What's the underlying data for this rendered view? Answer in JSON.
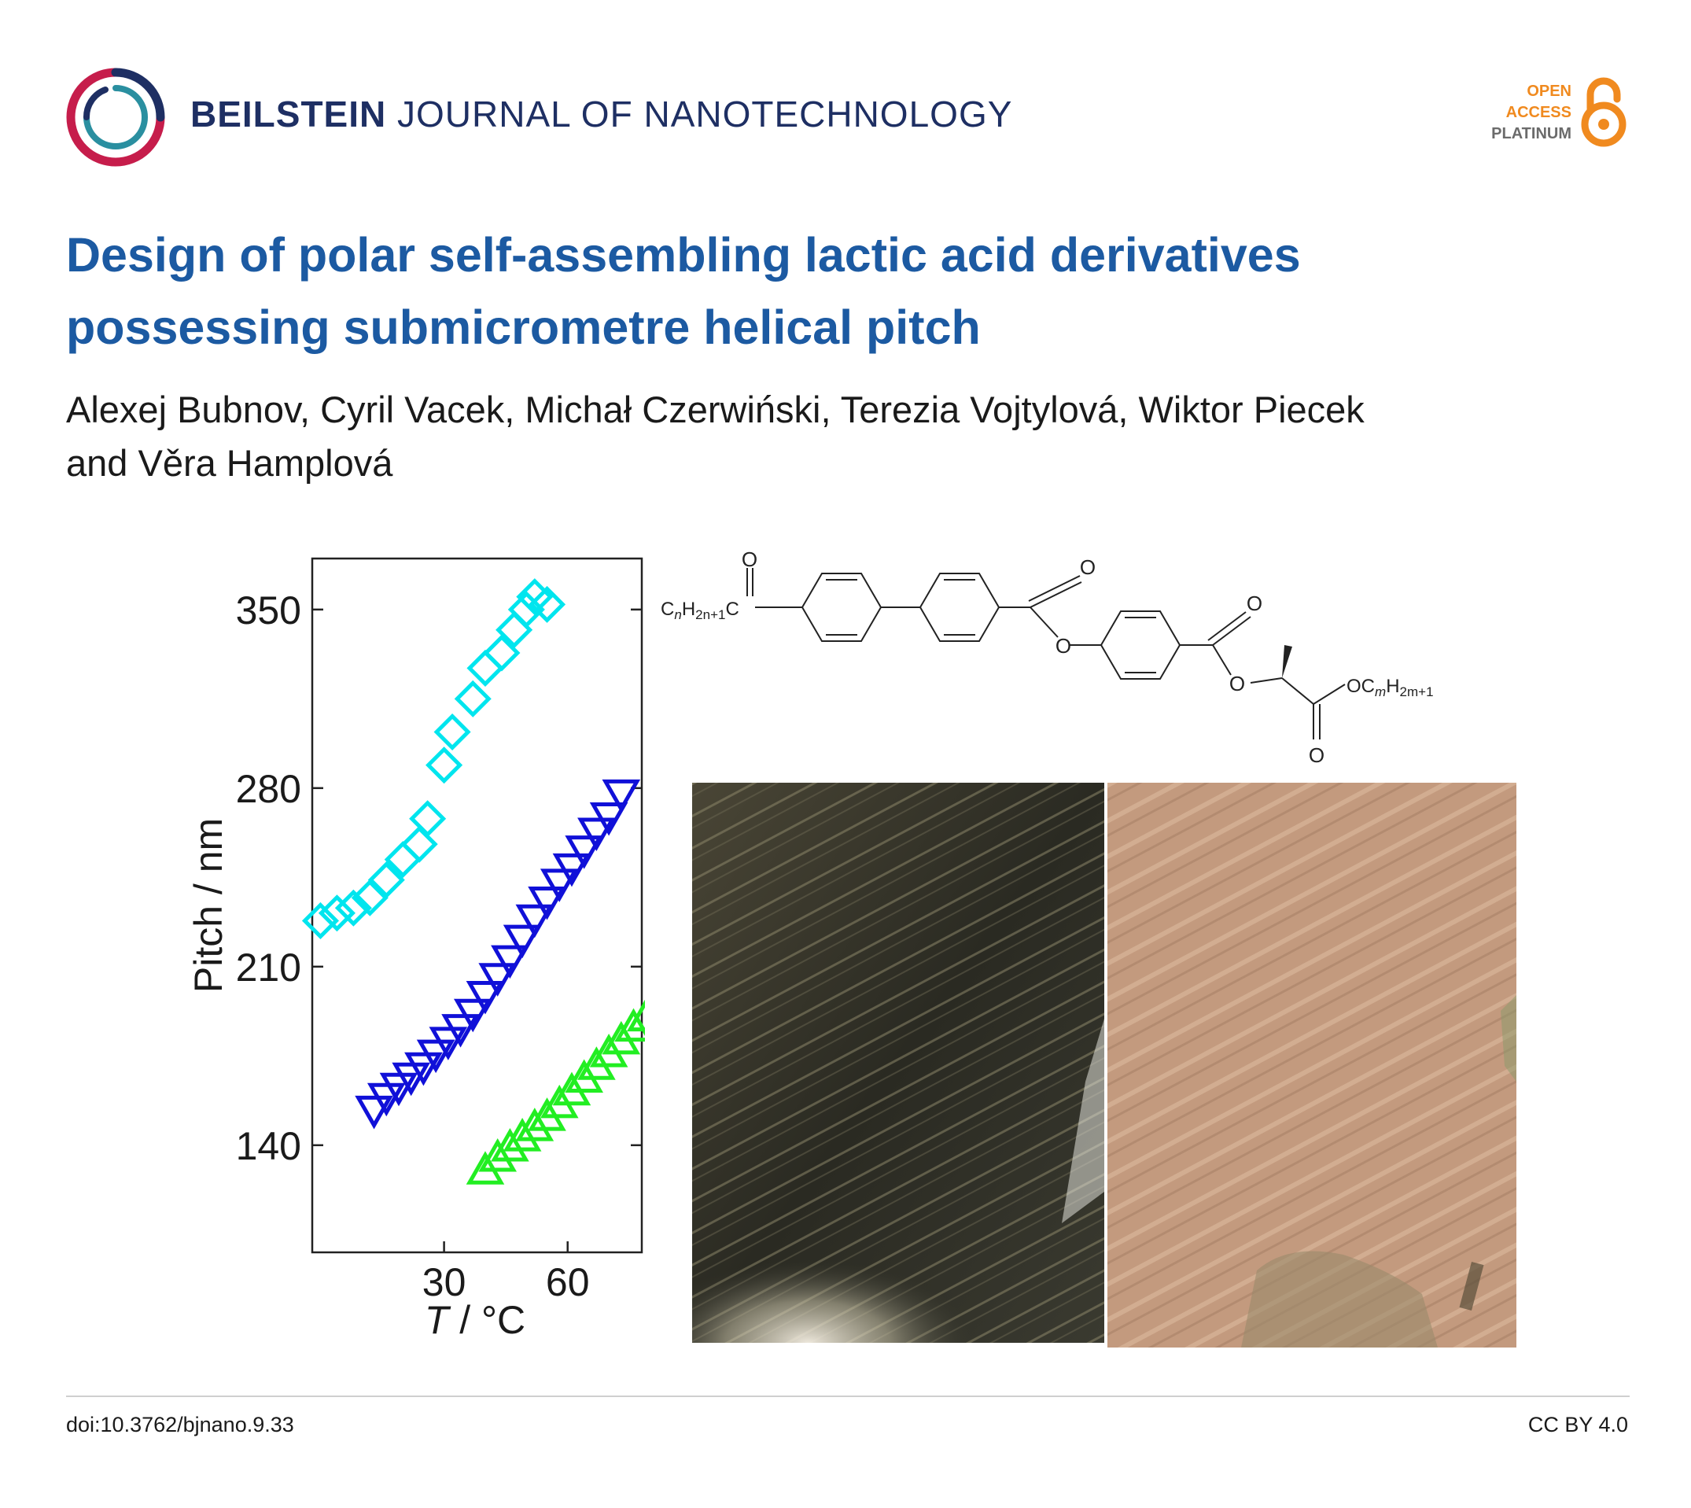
{
  "header": {
    "journal_bold": "BEILSTEIN",
    "journal_rest": "JOURNAL OF NANOTECHNOLOGY",
    "oa_line1": "OPEN",
    "oa_line2": "ACCESS",
    "oa_line3": "PLATINUM"
  },
  "article": {
    "title": "Design of polar self-assembling lactic acid derivatives possessing submicrometre helical pitch",
    "authors_line1": "Alexej Bubnov, Cyril Vacek, Michał Czerwiński, Terezia Vojtylová, Wiktor Piecek",
    "authors_line2": "and Věra Hamplová"
  },
  "structure": {
    "left_group_C": "C",
    "left_group_Hsym": "H",
    "left_group_n": "n",
    "left_group_2n1": "2n+1",
    "left_group_C2": "C",
    "oxygen_label": "O",
    "right_group_O": "O",
    "right_group_C": "C",
    "right_group_m": "m",
    "right_group_H": "H",
    "right_group_2m1": "2m+1"
  },
  "chart_data": {
    "type": "scatter",
    "xlabel_T": "T",
    "xlabel_unit": " / °C",
    "ylabel": "Pitch / nm",
    "xlim": [
      -2,
      78
    ],
    "ylim": [
      98,
      370
    ],
    "x_ticks": [
      30,
      60
    ],
    "y_ticks": [
      140,
      210,
      280,
      350
    ],
    "series": [
      {
        "color": "#00e5ee",
        "marker": "diamond",
        "points": [
          [
            0,
            228
          ],
          [
            4,
            231
          ],
          [
            8,
            233
          ],
          [
            12,
            237
          ],
          [
            16,
            244
          ],
          [
            20,
            252
          ],
          [
            24,
            258
          ],
          [
            26,
            268
          ],
          [
            30,
            289
          ],
          [
            32,
            302
          ],
          [
            37,
            315
          ],
          [
            40,
            327
          ],
          [
            44,
            333
          ],
          [
            47,
            342
          ],
          [
            50,
            350
          ],
          [
            52,
            355
          ],
          [
            55,
            352
          ]
        ]
      },
      {
        "color": "#1010d8",
        "marker": "triangle-down",
        "points": [
          [
            13,
            154
          ],
          [
            16,
            159
          ],
          [
            19,
            163
          ],
          [
            22,
            167
          ],
          [
            25,
            171
          ],
          [
            28,
            176
          ],
          [
            31,
            181
          ],
          [
            34,
            186
          ],
          [
            37,
            192
          ],
          [
            40,
            199
          ],
          [
            43,
            206
          ],
          [
            46,
            213
          ],
          [
            49,
            221
          ],
          [
            52,
            229
          ],
          [
            55,
            236
          ],
          [
            58,
            243
          ],
          [
            61,
            249
          ],
          [
            64,
            256
          ],
          [
            67,
            263
          ],
          [
            70,
            269
          ],
          [
            73,
            278
          ]
        ]
      },
      {
        "color": "#22ee22",
        "marker": "triangle-up",
        "points": [
          [
            40,
            130
          ],
          [
            43,
            135
          ],
          [
            46,
            139
          ],
          [
            49,
            143
          ],
          [
            52,
            147
          ],
          [
            55,
            151
          ],
          [
            58,
            156
          ],
          [
            61,
            161
          ],
          [
            64,
            166
          ],
          [
            67,
            171
          ],
          [
            70,
            176
          ],
          [
            73,
            181
          ],
          [
            76,
            186
          ],
          [
            79,
            190
          ]
        ]
      }
    ]
  },
  "footer": {
    "doi": "doi:10.3762/bjnano.9.33",
    "license": "CC BY 4.0"
  }
}
